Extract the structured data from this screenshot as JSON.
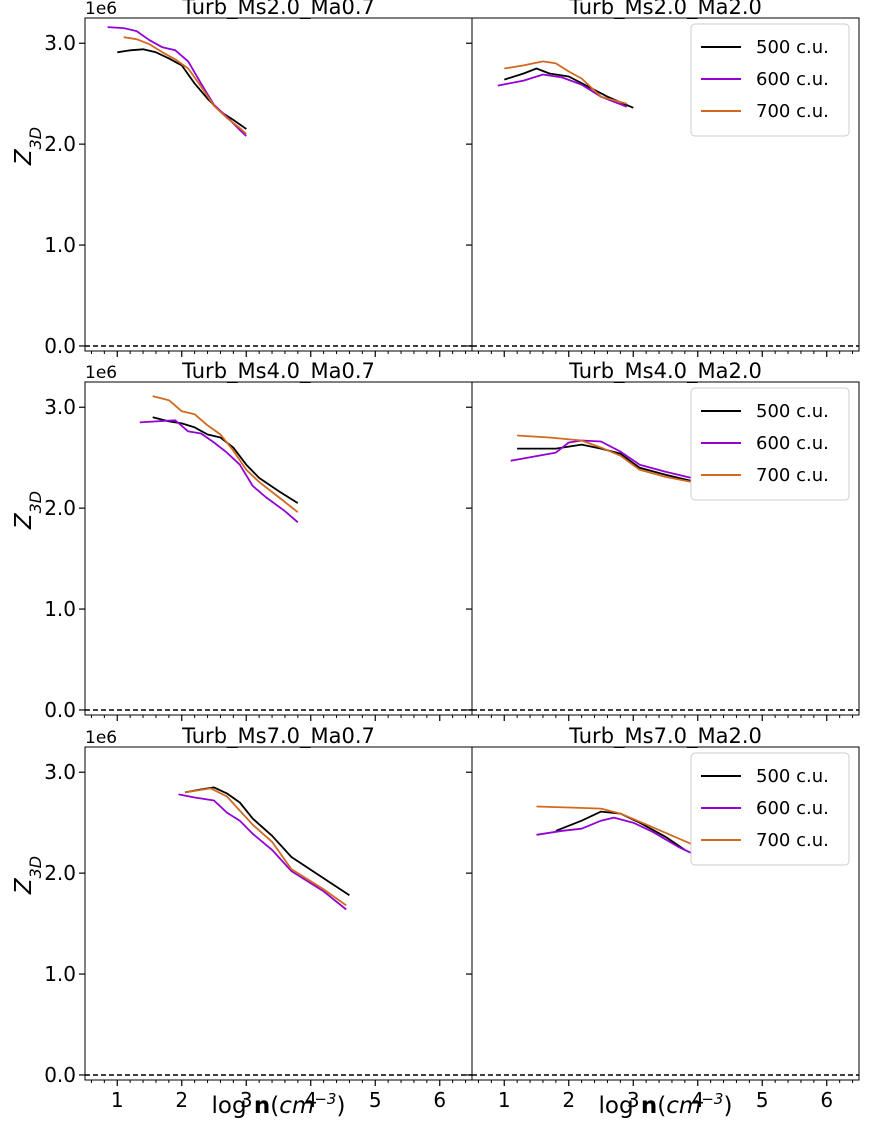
{
  "figure": {
    "x_axis_label": {
      "prefix": "log ",
      "bold": "n",
      "open": "(",
      "unit": "cm",
      "exp": "−3",
      "close": ")"
    },
    "y_axis_label": {
      "base": "Z",
      "sub": "3D"
    },
    "y_offset_text": "1e6",
    "x_tick_labels": [
      "1",
      "2",
      "3",
      "4",
      "5",
      "6"
    ],
    "y_tick_labels": [
      "0.0",
      "1.0",
      "2.0",
      "3.0"
    ],
    "colors": {
      "500 c.u.": "#000000",
      "600 c.u.": "#9400d3",
      "700 c.u.": "#d2691e",
      "axes": "#000000",
      "zero_line": "#000000"
    }
  },
  "chart_data": [
    {
      "type": "line",
      "title": "Turb_Ms2.0_Ma0.7",
      "xlabel": "",
      "ylabel": "Z_3D",
      "y_multiplier": "1e6",
      "xlim": [
        0.5,
        6.5
      ],
      "ylim": [
        -0.05,
        3.25
      ],
      "hline": 0.0,
      "legend": null,
      "series": [
        {
          "name": "500 c.u.",
          "x": [
            1.0,
            1.2,
            1.4,
            1.6,
            1.8,
            2.0,
            2.2,
            2.4,
            2.6,
            2.8,
            3.0
          ],
          "y": [
            2.91,
            2.93,
            2.94,
            2.91,
            2.85,
            2.78,
            2.6,
            2.45,
            2.32,
            2.24,
            2.15
          ]
        },
        {
          "name": "600 c.u.",
          "x": [
            0.85,
            1.1,
            1.3,
            1.5,
            1.7,
            1.9,
            2.1,
            2.3,
            2.5,
            2.7,
            2.9,
            3.0
          ],
          "y": [
            3.16,
            3.15,
            3.12,
            3.03,
            2.96,
            2.93,
            2.82,
            2.6,
            2.39,
            2.27,
            2.14,
            2.08
          ]
        },
        {
          "name": "700 c.u.",
          "x": [
            1.1,
            1.3,
            1.5,
            1.7,
            1.9,
            2.1,
            2.3,
            2.5,
            2.7,
            2.9,
            3.0
          ],
          "y": [
            3.06,
            3.04,
            2.99,
            2.91,
            2.84,
            2.75,
            2.57,
            2.38,
            2.26,
            2.16,
            2.1
          ]
        }
      ]
    },
    {
      "type": "line",
      "title": "Turb_Ms2.0_Ma2.0",
      "xlabel": "",
      "ylabel": "",
      "y_multiplier": "",
      "xlim": [
        0.5,
        6.5
      ],
      "ylim": [
        -0.05,
        3.25
      ],
      "hline": 0.0,
      "legend": "top-right",
      "series": [
        {
          "name": "500 c.u.",
          "x": [
            1.0,
            1.3,
            1.5,
            1.7,
            2.0,
            2.3,
            2.6,
            3.0
          ],
          "y": [
            2.64,
            2.7,
            2.75,
            2.7,
            2.67,
            2.57,
            2.47,
            2.36
          ]
        },
        {
          "name": "600 c.u.",
          "x": [
            0.9,
            1.3,
            1.6,
            1.9,
            2.2,
            2.5,
            2.9
          ],
          "y": [
            2.58,
            2.63,
            2.69,
            2.66,
            2.59,
            2.47,
            2.37
          ]
        },
        {
          "name": "700 c.u.",
          "x": [
            1.0,
            1.3,
            1.6,
            1.8,
            2.0,
            2.2,
            2.5,
            2.9
          ],
          "y": [
            2.75,
            2.78,
            2.82,
            2.8,
            2.72,
            2.65,
            2.47,
            2.4
          ]
        }
      ]
    },
    {
      "type": "line",
      "title": "Turb_Ms4.0_Ma0.7",
      "xlabel": "",
      "ylabel": "Z_3D",
      "y_multiplier": "1e6",
      "xlim": [
        0.5,
        6.5
      ],
      "ylim": [
        -0.05,
        3.25
      ],
      "hline": 0.0,
      "legend": null,
      "series": [
        {
          "name": "500 c.u.",
          "x": [
            1.55,
            1.8,
            2.0,
            2.2,
            2.4,
            2.6,
            2.8,
            3.0,
            3.2,
            3.5,
            3.8
          ],
          "y": [
            2.9,
            2.86,
            2.84,
            2.8,
            2.73,
            2.7,
            2.6,
            2.43,
            2.3,
            2.17,
            2.05
          ]
        },
        {
          "name": "600 c.u.",
          "x": [
            1.35,
            1.6,
            1.9,
            2.1,
            2.3,
            2.5,
            2.7,
            2.9,
            3.1,
            3.3,
            3.6,
            3.8
          ],
          "y": [
            2.85,
            2.86,
            2.87,
            2.76,
            2.74,
            2.65,
            2.55,
            2.43,
            2.22,
            2.11,
            1.97,
            1.86
          ]
        },
        {
          "name": "700 c.u.",
          "x": [
            1.55,
            1.8,
            2.0,
            2.2,
            2.4,
            2.6,
            2.8,
            3.0,
            3.2,
            3.5,
            3.8
          ],
          "y": [
            3.11,
            3.07,
            2.96,
            2.93,
            2.82,
            2.73,
            2.57,
            2.38,
            2.26,
            2.11,
            1.96
          ]
        }
      ]
    },
    {
      "type": "line",
      "title": "Turb_Ms4.0_Ma2.0",
      "xlabel": "",
      "ylabel": "",
      "y_multiplier": "",
      "xlim": [
        0.5,
        6.5
      ],
      "ylim": [
        -0.05,
        3.25
      ],
      "hline": 0.0,
      "legend": "top-right",
      "series": [
        {
          "name": "500 c.u.",
          "x": [
            1.2,
            1.8,
            2.0,
            2.2,
            2.5,
            2.8,
            3.1,
            3.5,
            3.9
          ],
          "y": [
            2.59,
            2.59,
            2.61,
            2.63,
            2.59,
            2.54,
            2.4,
            2.33,
            2.27
          ]
        },
        {
          "name": "600 c.u.",
          "x": [
            1.1,
            1.8,
            2.0,
            2.2,
            2.5,
            2.8,
            3.1,
            3.5,
            3.9
          ],
          "y": [
            2.47,
            2.55,
            2.65,
            2.67,
            2.66,
            2.56,
            2.43,
            2.36,
            2.3
          ]
        },
        {
          "name": "700 c.u.",
          "x": [
            1.2,
            1.7,
            2.2,
            2.5,
            2.8,
            3.1,
            3.5,
            3.9
          ],
          "y": [
            2.72,
            2.7,
            2.67,
            2.6,
            2.52,
            2.38,
            2.31,
            2.26
          ]
        }
      ]
    },
    {
      "type": "line",
      "title": "Turb_Ms7.0_Ma0.7",
      "xlabel": "log n(cm^-3)",
      "ylabel": "Z_3D",
      "y_multiplier": "1e6",
      "xlim": [
        0.5,
        6.5
      ],
      "ylim": [
        -0.05,
        3.25
      ],
      "hline": 0.0,
      "legend": null,
      "series": [
        {
          "name": "500 c.u.",
          "x": [
            2.05,
            2.3,
            2.5,
            2.7,
            2.9,
            3.1,
            3.4,
            3.7,
            4.2,
            4.6
          ],
          "y": [
            2.8,
            2.83,
            2.85,
            2.79,
            2.7,
            2.54,
            2.37,
            2.16,
            1.95,
            1.78
          ]
        },
        {
          "name": "600 c.u.",
          "x": [
            1.95,
            2.2,
            2.5,
            2.7,
            2.9,
            3.1,
            3.4,
            3.7,
            4.2,
            4.55
          ],
          "y": [
            2.78,
            2.75,
            2.72,
            2.6,
            2.52,
            2.39,
            2.23,
            2.02,
            1.82,
            1.64
          ]
        },
        {
          "name": "700 c.u.",
          "x": [
            2.05,
            2.25,
            2.45,
            2.7,
            2.9,
            3.1,
            3.4,
            3.7,
            4.2,
            4.55
          ],
          "y": [
            2.8,
            2.82,
            2.84,
            2.76,
            2.62,
            2.48,
            2.31,
            2.04,
            1.84,
            1.68
          ]
        }
      ]
    },
    {
      "type": "line",
      "title": "Turb_Ms7.0_Ma2.0",
      "xlabel": "log n(cm^-3)",
      "ylabel": "",
      "y_multiplier": "",
      "xlim": [
        0.5,
        6.5
      ],
      "ylim": [
        -0.05,
        3.25
      ],
      "hline": 0.0,
      "legend": "top-right",
      "series": [
        {
          "name": "500 c.u.",
          "x": [
            1.8,
            2.2,
            2.5,
            2.8,
            3.1,
            3.5,
            3.8
          ],
          "y": [
            2.42,
            2.52,
            2.61,
            2.59,
            2.5,
            2.36,
            2.23
          ]
        },
        {
          "name": "600 c.u.",
          "x": [
            1.5,
            1.9,
            2.2,
            2.5,
            2.7,
            3.0,
            3.3,
            3.7,
            3.9
          ],
          "y": [
            2.38,
            2.42,
            2.44,
            2.52,
            2.55,
            2.5,
            2.41,
            2.26,
            2.2
          ]
        },
        {
          "name": "700 c.u.",
          "x": [
            1.5,
            2.0,
            2.5,
            2.8,
            3.1,
            3.5,
            3.9
          ],
          "y": [
            2.66,
            2.65,
            2.64,
            2.59,
            2.51,
            2.4,
            2.29
          ]
        }
      ]
    }
  ]
}
